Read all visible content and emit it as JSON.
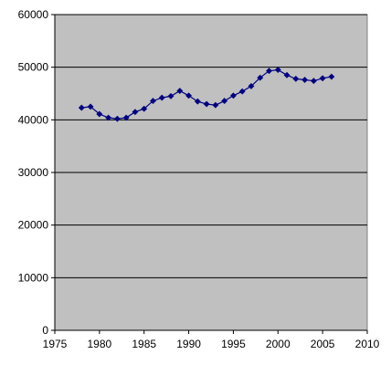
{
  "chart_data": {
    "type": "line",
    "title": "",
    "xlabel": "",
    "ylabel": "",
    "xlim": [
      1975,
      2010
    ],
    "ylim": [
      0,
      60000
    ],
    "x_ticks": [
      1975,
      1980,
      1985,
      1990,
      1995,
      2000,
      2005,
      2010
    ],
    "y_ticks": [
      0,
      10000,
      20000,
      30000,
      40000,
      50000,
      60000
    ],
    "x_tick_labels": [
      "1975",
      "1980",
      "1985",
      "1990",
      "1995",
      "2000",
      "2005",
      "2010"
    ],
    "y_tick_labels": [
      "0",
      "10000",
      "20000",
      "30000",
      "40000",
      "50000",
      "60000"
    ],
    "grid": "horizontal",
    "legend": "none",
    "colors": {
      "plot_background": "#c0c0c0",
      "series": "#000080",
      "gridline": "#000000"
    },
    "marker": "diamond",
    "series": [
      {
        "x": [
          1978,
          1979,
          1980,
          1981,
          1982,
          1983,
          1984,
          1985,
          1986,
          1987,
          1988,
          1989,
          1990,
          1991,
          1992,
          1993,
          1994,
          1995,
          1996,
          1997,
          1998,
          1999,
          2000,
          2001,
          2002,
          2003,
          2004,
          2005,
          2006
        ],
        "values": [
          42300,
          42500,
          41100,
          40400,
          40200,
          40400,
          41500,
          42100,
          43600,
          44200,
          44500,
          45500,
          44600,
          43500,
          43000,
          42800,
          43600,
          44600,
          45400,
          46400,
          48000,
          49300,
          49500,
          48500,
          47800,
          47600,
          47400,
          47900,
          48200
        ]
      }
    ]
  }
}
